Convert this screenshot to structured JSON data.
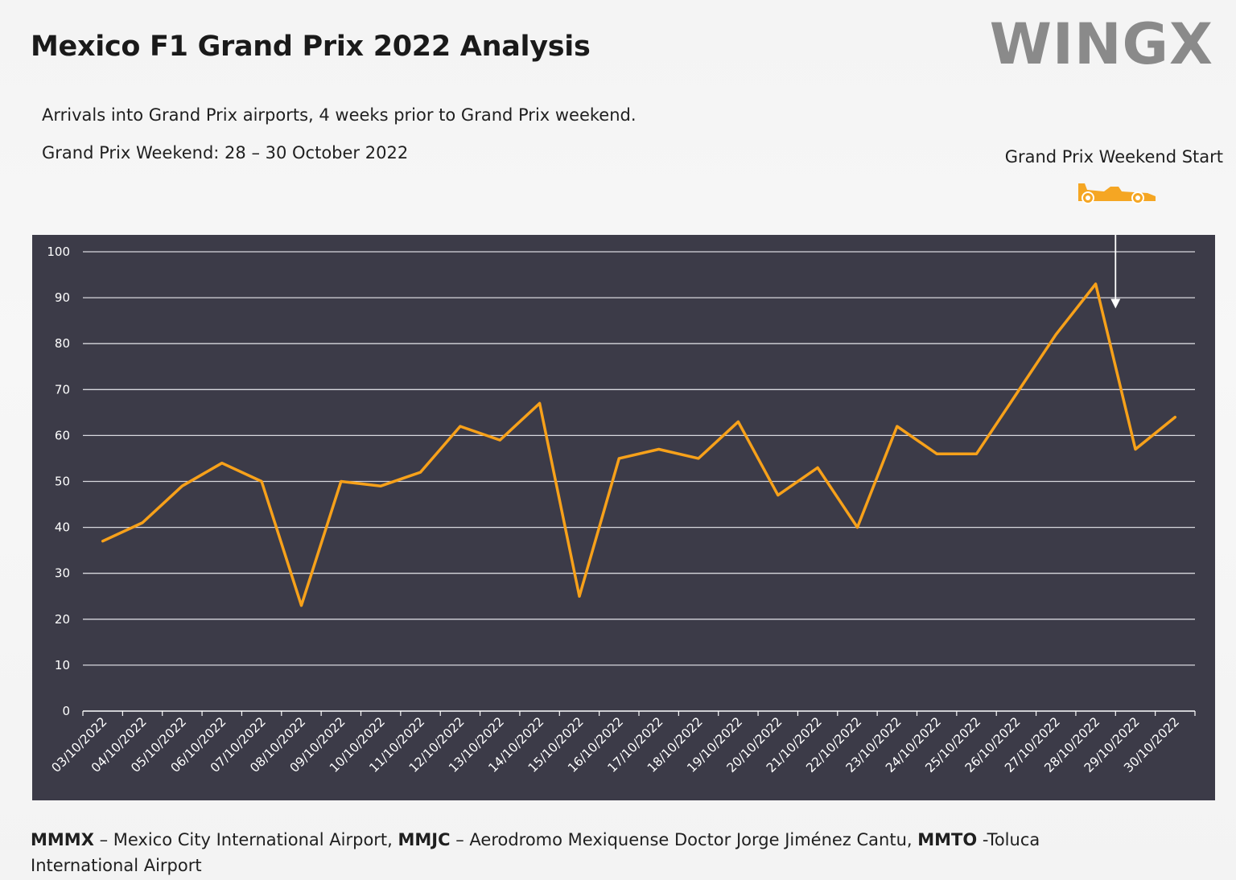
{
  "header": {
    "title": "Mexico F1 Grand Prix 2022 Analysis",
    "brand": "WINGX",
    "subtitle_1": "Arrivals into Grand Prix airports, 4 weeks prior to Grand Prix weekend.",
    "subtitle_2": "Grand Prix Weekend: 28 – 30 October 2022",
    "marker_label": "Grand Prix Weekend Start"
  },
  "icons": {
    "marker": "f1-car-icon"
  },
  "colors": {
    "line": "#f7a11a",
    "panel": "#3c3b48",
    "grid": "#d8d8de",
    "text_on_panel": "#ffffff",
    "car": "#f5a623"
  },
  "chart_data": {
    "type": "line",
    "title": "",
    "xlabel": "",
    "ylabel": "",
    "ylim": [
      0,
      100
    ],
    "yticks": [
      0,
      10,
      20,
      30,
      40,
      50,
      60,
      70,
      80,
      90,
      100
    ],
    "grid": true,
    "categories": [
      "03/10/2022",
      "04/10/2022",
      "05/10/2022",
      "06/10/2022",
      "07/10/2022",
      "08/10/2022",
      "09/10/2022",
      "10/10/2022",
      "11/10/2022",
      "12/10/2022",
      "13/10/2022",
      "14/10/2022",
      "15/10/2022",
      "16/10/2022",
      "17/10/2022",
      "18/10/2022",
      "19/10/2022",
      "20/10/2022",
      "21/10/2022",
      "22/10/2022",
      "23/10/2022",
      "24/10/2022",
      "25/10/2022",
      "26/10/2022",
      "27/10/2022",
      "28/10/2022",
      "29/10/2022",
      "30/10/2022"
    ],
    "series": [
      {
        "values": [
          37,
          41,
          49,
          54,
          50,
          23,
          50,
          49,
          52,
          62,
          59,
          67,
          25,
          55,
          57,
          55,
          63,
          47,
          53,
          40,
          62,
          56,
          56,
          69,
          82,
          93,
          57,
          64
        ]
      }
    ],
    "annotation": {
      "label": "Grand Prix Weekend Start",
      "at_category": "28/10/2022",
      "position": "between 28/10/2022 and 29/10/2022",
      "arrow_to_value": 88
    }
  },
  "footnote": {
    "code_1": "MMMX",
    "text_1": " – Mexico City International Airport, ",
    "code_2": "MMJC",
    "text_2": " – Aerodromo Mexiquense Doctor Jorge Jiménez Cantu, ",
    "code_3": "MMTO",
    "text_3": " -Toluca International Airport"
  }
}
